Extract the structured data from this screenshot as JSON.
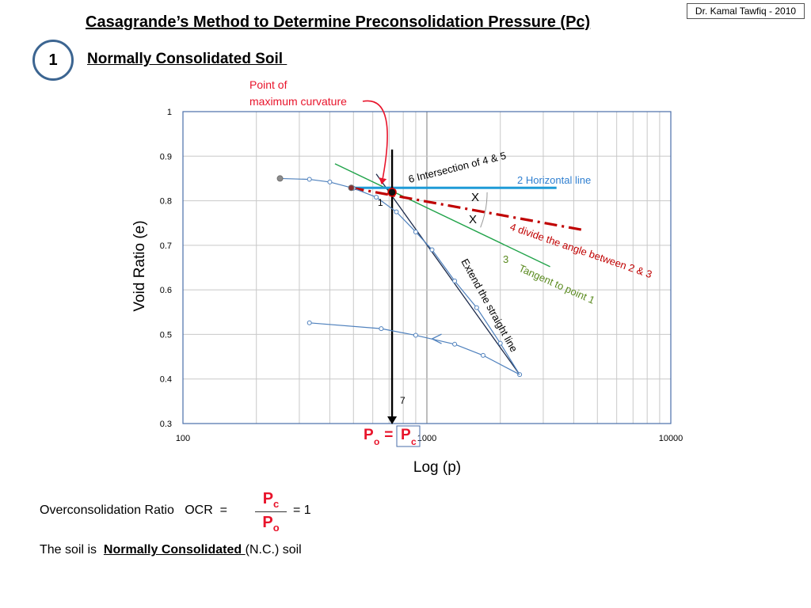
{
  "header": {
    "credit": "Dr. Kamal Tawfiq - 2010",
    "title": "Casagrande’s Method to Determine Preconsolidation Pressure (Pc)",
    "step_number": "1",
    "subtitle": "Normally Consolidated Soil "
  },
  "colors": {
    "title_underline": "#000000",
    "circle_border": "#3c6591",
    "curve": "#4f81bd",
    "horizontal_line": "#1f9bd7",
    "bisector": "#c00000",
    "tangent": "#21a34a",
    "vertical_line": "#000000",
    "annotation_red": "#e8142b",
    "tangent_label": "#5a8a1f",
    "grid": "#c8c8c8"
  },
  "annotations": {
    "max_curvature_line1": "Point of",
    "max_curvature_line2": "maximum curvature",
    "label_1": "1",
    "label_2": "2   Horizontal line",
    "label_3": "3",
    "label_3_text": "Tangent to point 1",
    "label_4": "4   divide the angle between 2 & 3",
    "label_6": "6  Intersection of 4 & 5",
    "label_7": "7",
    "extend_line": "Extend the straight line",
    "angle_x1": "X",
    "angle_x2": "X",
    "po_pc_p": "P",
    "po_pc_o": "o",
    "po_pc_eq": " = ",
    "po_pc_p2": "P",
    "po_pc_c": "c"
  },
  "chart_data": {
    "type": "scatter",
    "xlabel": "Log (p)",
    "ylabel": "Void Ratio (e)",
    "xscale": "log",
    "xlim": [
      100,
      10000
    ],
    "ylim": [
      0.3,
      1.0
    ],
    "x_tick_labels": [
      "100",
      "1000",
      "10000"
    ],
    "y_tick_labels": [
      "0.3",
      "0.4",
      "0.5",
      "0.6",
      "0.7",
      "0.8",
      "0.9",
      "1"
    ],
    "grid": true,
    "series": [
      {
        "values_xy": [
          [
            250,
            0.85
          ],
          [
            330,
            0.848
          ],
          [
            400,
            0.842
          ],
          [
            500,
            0.828
          ],
          [
            620,
            0.808
          ],
          [
            750,
            0.775
          ],
          [
            900,
            0.73
          ],
          [
            1050,
            0.69
          ],
          [
            1300,
            0.62
          ],
          [
            1600,
            0.56
          ],
          [
            2000,
            0.48
          ],
          [
            2400,
            0.41
          ]
        ]
      },
      {
        "values_xy": [
          [
            2400,
            0.41
          ],
          [
            1700,
            0.453
          ],
          [
            1300,
            0.478
          ],
          [
            900,
            0.498
          ],
          [
            650,
            0.513
          ],
          [
            330,
            0.526
          ]
        ]
      }
    ],
    "construction_lines": {
      "horizontal": [
        [
          490,
          0.829
        ],
        [
          3400,
          0.829
        ]
      ],
      "tangent": [
        [
          420,
          0.883
        ],
        [
          3200,
          0.652
        ]
      ],
      "bisector": [
        [
          490,
          0.829
        ],
        [
          4400,
          0.734
        ]
      ],
      "straight_extension": [
        [
          620,
          0.86
        ],
        [
          2400,
          0.41
        ]
      ],
      "vertical_pc": [
        [
          720,
          0.3
        ],
        [
          720,
          0.915
        ]
      ]
    },
    "key_points": {
      "max_curvature": [
        490,
        0.829
      ],
      "intersection": [
        720,
        0.819
      ]
    }
  },
  "bottom": {
    "ocr_label": "Overconsolidation Ratio   OCR  =",
    "ocr_num_p": "P",
    "ocr_num_sub": "c",
    "ocr_den_p": "P",
    "ocr_den_sub": "o",
    "ocr_result": "= 1",
    "soil_prefix": "The soil is  ",
    "soil_bold": "Normally Consolidated ",
    "soil_suffix": "(N.C.) soil"
  }
}
